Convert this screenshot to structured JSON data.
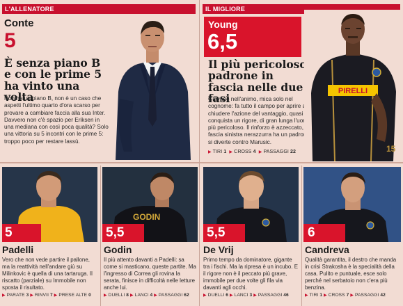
{
  "allenatore": {
    "section_label": "L'ALLENATORE",
    "name": "Conte",
    "grade": "5",
    "headline": "È senza piano B e con le prime 5 ha vinto una volta",
    "body": "Non ha un piano B, non è un caso che aspetti l'ultimo quarto d'ora scarso per provare a cambiare faccia alla sua Inter. Davvero non c'è spazio per Eriksen in una mediana con così poca qualità? Solo una vittoria su 5 incontri con le prime 5: troppo poco per restare lassù."
  },
  "migliore": {
    "section_label": "IL MIGLIORE",
    "name": "Young",
    "grade": "6,5",
    "headline": "Il più pericoloso, padrone in fascia nelle due fasi",
    "body": "Giovane nell'animo, mica solo nel cognome: fa tutto il campo per aprire a chiudere l'azione del vantaggio, quasi conquista un rigore, di gran lunga l'uomo più pericoloso. Il rinforzo è azzeccato, la fascia sinistra nerazzurra ha un padrone, si diverte contro Marusic.",
    "shirt_sponsor": "PIRELLI",
    "stats": [
      {
        "label": "TIRI",
        "value": "1"
      },
      {
        "label": "CROSS",
        "value": "4"
      },
      {
        "label": "PASSAGGI",
        "value": "22"
      }
    ]
  },
  "players": [
    {
      "name": "Padelli",
      "grade": "5",
      "body": "Vero che non vede partire il pallone, ma la reattività nell'andare giù su Milinkovic è quella di una tartaruga. Il riscatto (parziale) su Immobile non sposta il risultato.",
      "stats": [
        {
          "label": "PARATE",
          "value": "3"
        },
        {
          "label": "RINVII",
          "value": "7"
        },
        {
          "label": "PRESE ALTE",
          "value": "0"
        }
      ]
    },
    {
      "name": "Godin",
      "grade": "5,5",
      "shirt_text": "GODIN",
      "body": "Il più attento davanti a Padelli: sa come si masticano, queste partite. Ma l'ingresso di Correa gli rovina la serata, finisce in difficoltà nelle letture anche lui.",
      "stats": [
        {
          "label": "DUELLI",
          "value": "8"
        },
        {
          "label": "LANCI",
          "value": "4"
        },
        {
          "label": "PASSAGGI",
          "value": "62"
        }
      ]
    },
    {
      "name": "De Vrij",
      "grade": "5,5",
      "body": "Primo tempo da dominatore, gigante tra i fischi. Ma la ripresa è un incubo. E il rigore non è il peccato più grave, immobile per due volte gli fila via davanti agli occhi.",
      "stats": [
        {
          "label": "DUELLI",
          "value": "6"
        },
        {
          "label": "LANCI",
          "value": "3"
        },
        {
          "label": "PASSAGGI",
          "value": "46"
        }
      ]
    },
    {
      "name": "Candreva",
      "grade": "6",
      "body": "Qualità garantita, il destro che manda in crisi Strakosha è la specialità della casa. Pulito e puntuale, esce solo perché nel serbatoio non c'era più benzina.",
      "stats": [
        {
          "label": "TIRI",
          "value": "1"
        },
        {
          "label": "CROSS",
          "value": "7"
        },
        {
          "label": "PASSAGGI",
          "value": "42"
        }
      ]
    }
  ],
  "colors": {
    "accent_red": "#c8102e",
    "grade_red": "#d9142b",
    "background": "#f2dcd3"
  }
}
